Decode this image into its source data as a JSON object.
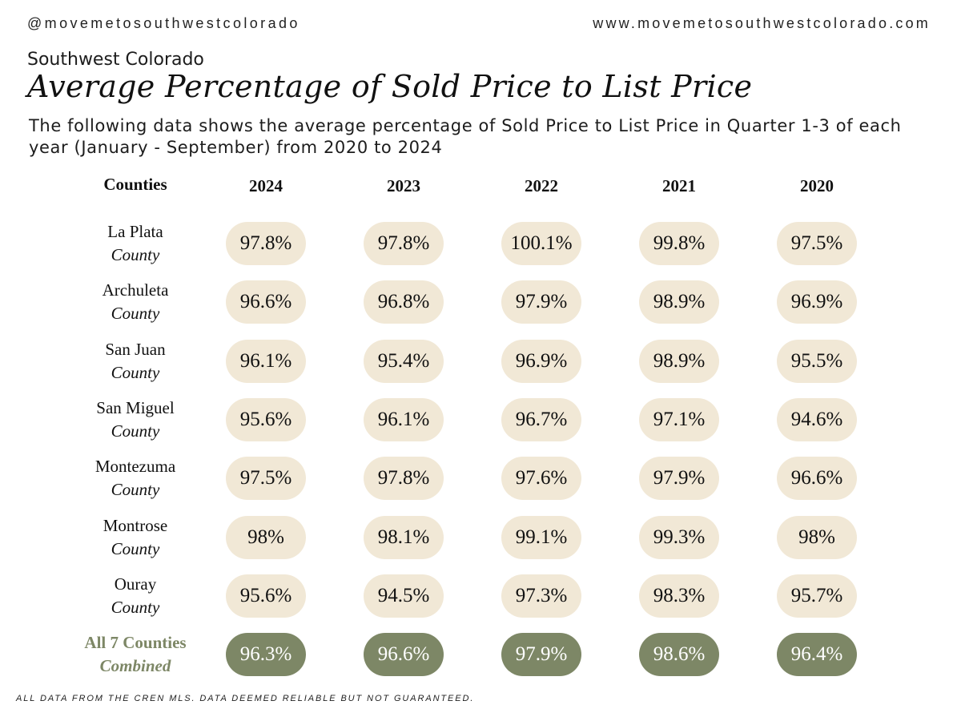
{
  "header": {
    "handle": "@movemetosouthwestcolorado",
    "website": "www.movemetosouthwestcolorado.com"
  },
  "region": "Southwest Colorado",
  "title": "Average Percentage of Sold Price to List Price",
  "subtitle": "The following data shows the average percentage of Sold Price to List Price in Quarter 1-3 of each year (January - September) from 2020 to 2024",
  "disclaimer": "ALL DATA FROM THE CREN MLS. DATA DEEMED RELIABLE BUT NOT GUARANTEED.",
  "colors": {
    "pill": "#f1e8d6",
    "combined": "#7d8766"
  },
  "chart_data": {
    "type": "table",
    "title": "Average Percentage of Sold Price to List Price",
    "row_header": "Counties",
    "columns": [
      "2024",
      "2023",
      "2022",
      "2021",
      "2020"
    ],
    "rows": [
      {
        "name": "La Plata",
        "sub": "County",
        "values": [
          "97.8%",
          "97.8%",
          "100.1%",
          "99.8%",
          "97.5%"
        ]
      },
      {
        "name": "Archuleta",
        "sub": "County",
        "values": [
          "96.6%",
          "96.8%",
          "97.9%",
          "98.9%",
          "96.9%"
        ]
      },
      {
        "name": "San Juan",
        "sub": "County",
        "values": [
          "96.1%",
          "95.4%",
          "96.9%",
          "98.9%",
          "95.5%"
        ]
      },
      {
        "name": "San Miguel",
        "sub": "County",
        "values": [
          "95.6%",
          "96.1%",
          "96.7%",
          "97.1%",
          "94.6%"
        ]
      },
      {
        "name": "Montezuma",
        "sub": "County",
        "values": [
          "97.5%",
          "97.8%",
          "97.6%",
          "97.9%",
          "96.6%"
        ]
      },
      {
        "name": "Montrose",
        "sub": "County",
        "values": [
          "98%",
          "98.1%",
          "99.1%",
          "99.3%",
          "98%"
        ]
      },
      {
        "name": "Ouray",
        "sub": "County",
        "values": [
          "95.6%",
          "94.5%",
          "97.3%",
          "98.3%",
          "95.7%"
        ]
      },
      {
        "name": "All 7 Counties",
        "sub": "Combined",
        "values": [
          "96.3%",
          "96.6%",
          "97.9%",
          "98.6%",
          "96.4%"
        ],
        "highlight": true
      }
    ]
  }
}
